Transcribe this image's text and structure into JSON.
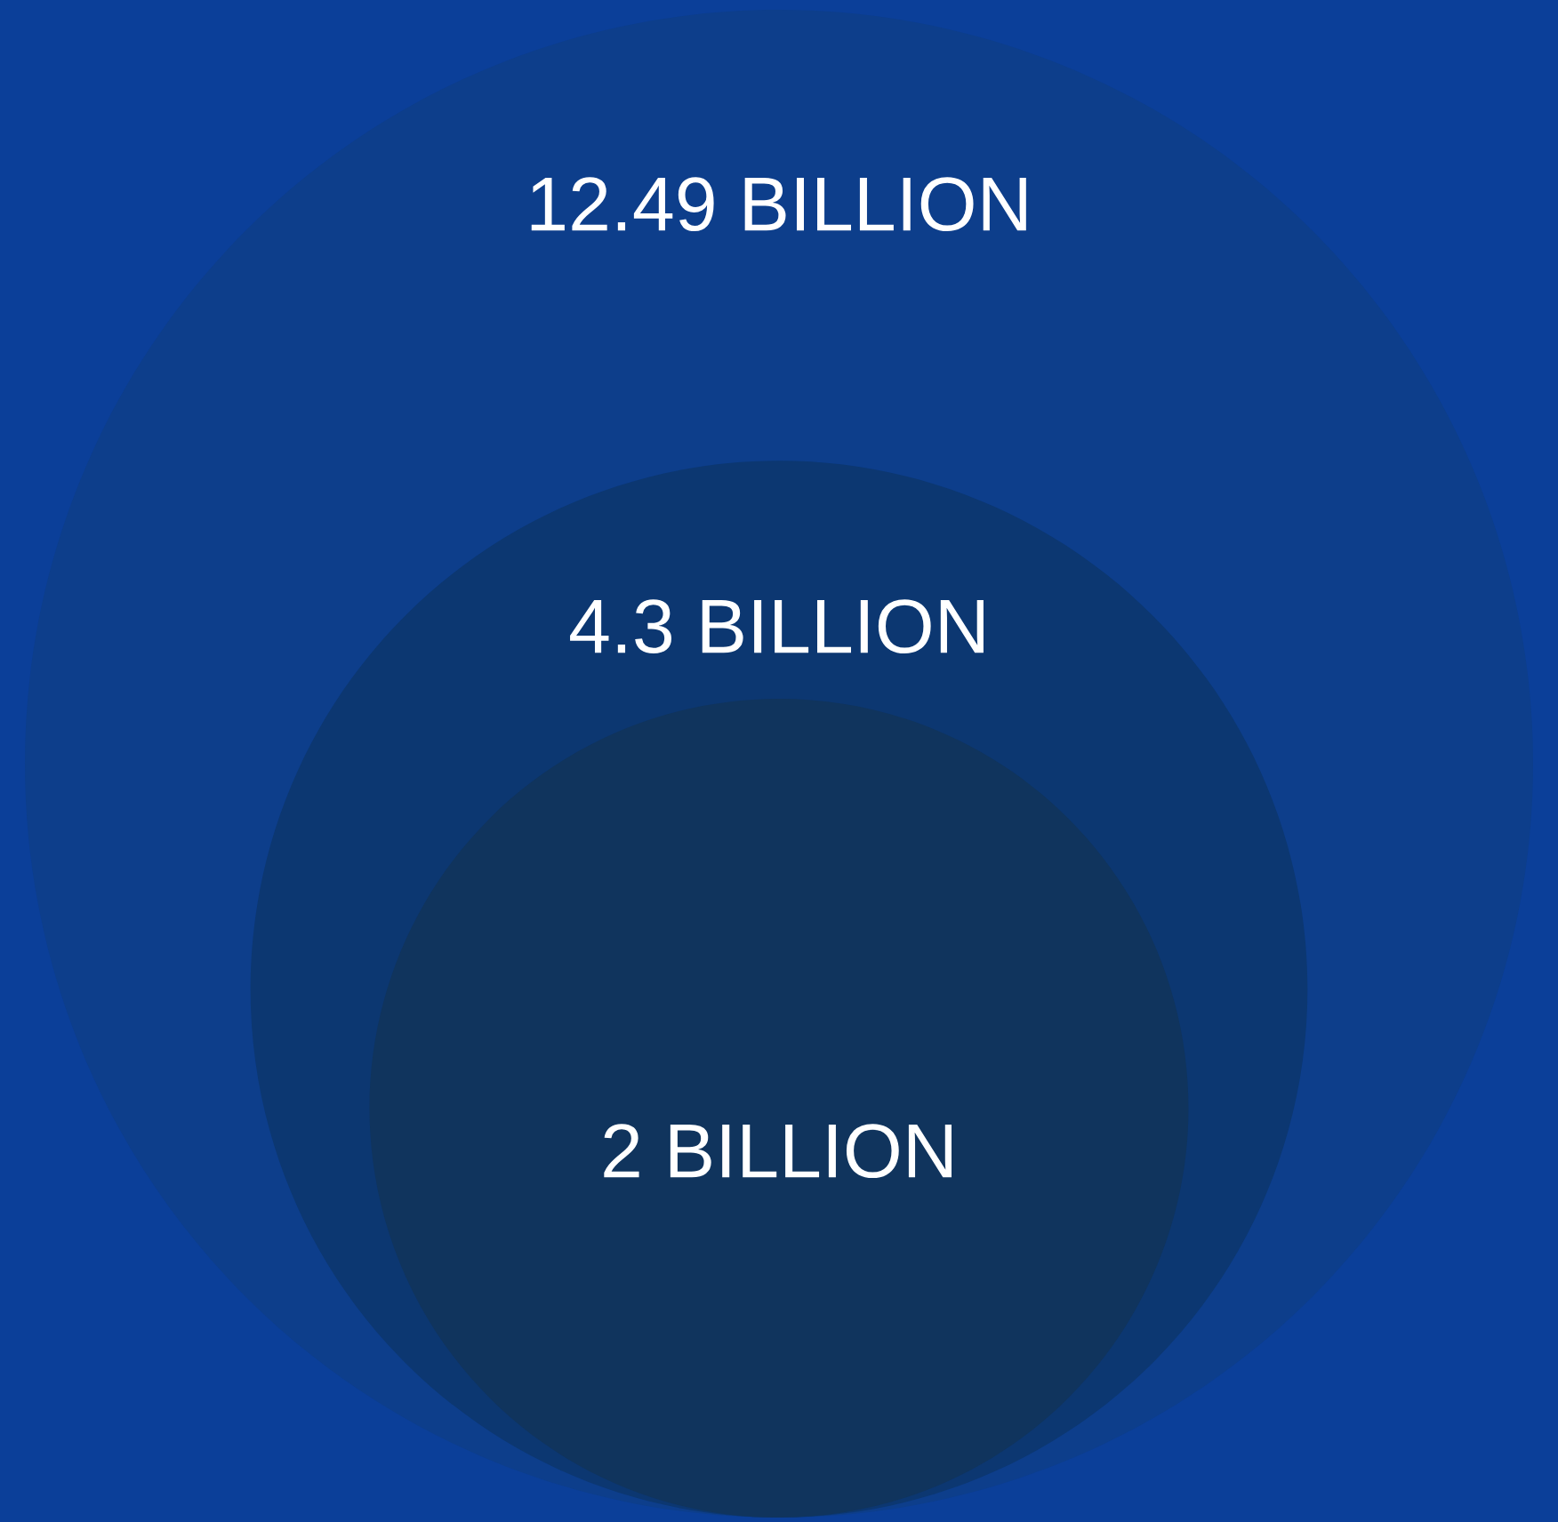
{
  "chart_data": {
    "type": "other",
    "values": [
      12.49,
      4.3,
      2
    ],
    "value_labels": [
      "12.49 BILLION",
      "4.3 BILLION",
      "2 BILLION"
    ],
    "colors": [
      "#0d3e8b",
      "#0c3771",
      "#10345d"
    ]
  }
}
